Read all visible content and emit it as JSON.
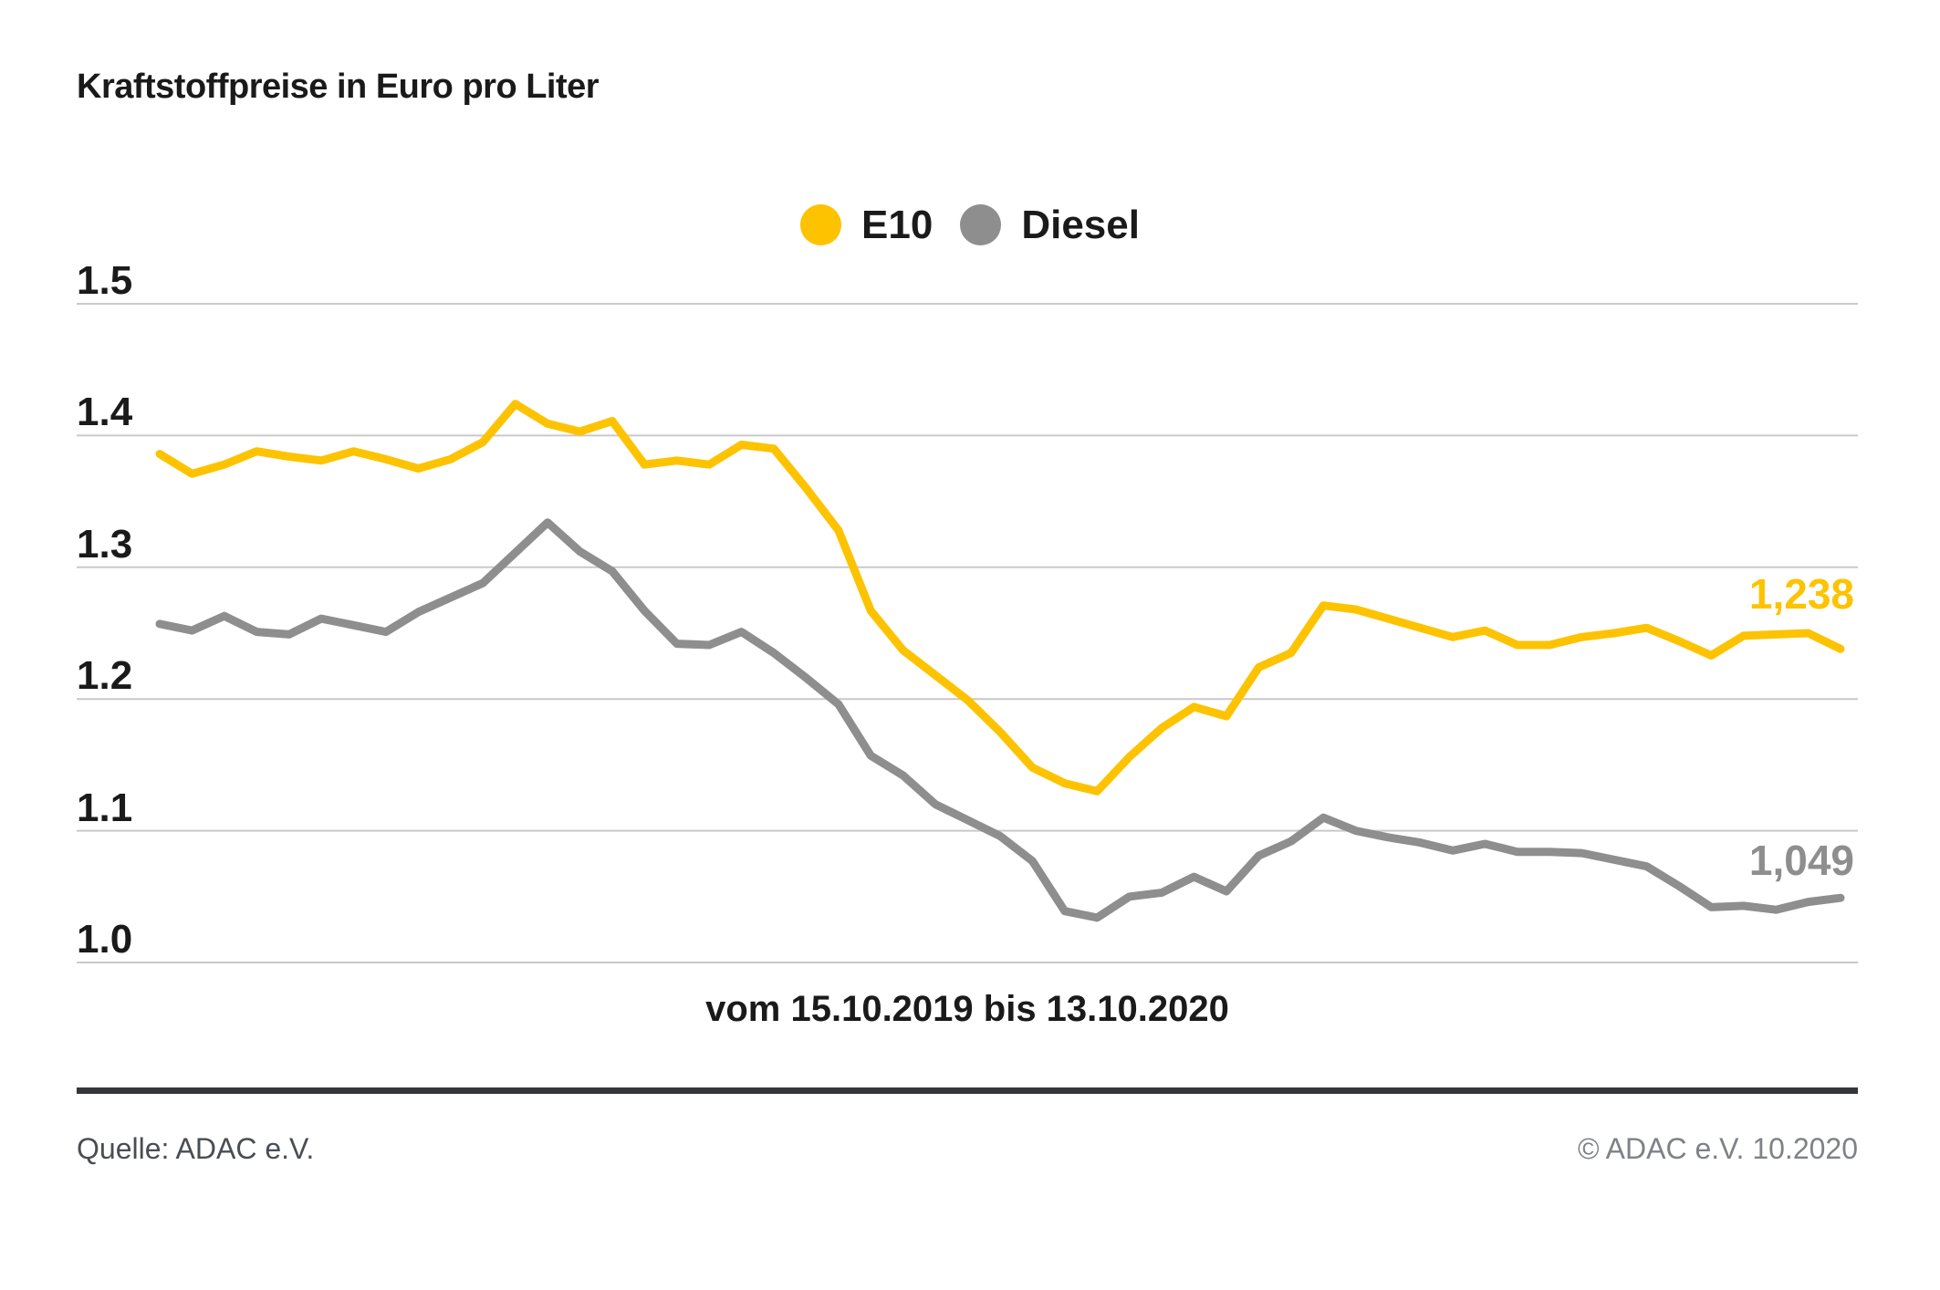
{
  "title": "Kraftstoffpreise in Euro pro Liter",
  "legend": [
    {
      "label": "E10",
      "color": "#fdc300"
    },
    {
      "label": "Diesel",
      "color": "#8e8e8e"
    }
  ],
  "footer": {
    "source": "Quelle: ADAC e.V.",
    "copyright": "© ADAC e.V. 10.2020"
  },
  "colors": {
    "e10": "#fdc300",
    "diesel": "#8e8e8e",
    "gridline": "#c9c9c9",
    "text": "#1a1a1a",
    "divider": "#33373b"
  },
  "chart_data": {
    "type": "line",
    "title": "Kraftstoffpreise in Euro pro Liter",
    "xlabel": "vom 15.10.2019 bis 13.10.2020",
    "ylabel": "Euro pro Liter",
    "x_range": [
      "15.10.2019",
      "13.10.2020"
    ],
    "x_interval": "weekly",
    "ylim": [
      1.0,
      1.55
    ],
    "grid": true,
    "legend_position": "top-center",
    "y_ticks": [
      {
        "label": "1.5",
        "value": 1.5
      },
      {
        "label": "1.4",
        "value": 1.4
      },
      {
        "label": "1.3",
        "value": 1.3
      },
      {
        "label": "1.2",
        "value": 1.2
      },
      {
        "label": "1.1",
        "value": 1.1
      },
      {
        "label": "1.0",
        "value": 1.0
      }
    ],
    "series": [
      {
        "name": "E10",
        "color": "#fdc300",
        "end_label": "1,238",
        "end_value": 1.238,
        "values": [
          1.386,
          1.371,
          1.378,
          1.388,
          1.384,
          1.381,
          1.388,
          1.382,
          1.375,
          1.382,
          1.395,
          1.424,
          1.409,
          1.403,
          1.411,
          1.378,
          1.381,
          1.378,
          1.393,
          1.39,
          1.36,
          1.328,
          1.267,
          1.237,
          1.218,
          1.199,
          1.175,
          1.148,
          1.136,
          1.13,
          1.156,
          1.178,
          1.194,
          1.187,
          1.224,
          1.235,
          1.271,
          1.268,
          1.261,
          1.254,
          1.247,
          1.252,
          1.241,
          1.241,
          1.247,
          1.25,
          1.254,
          1.244,
          1.233,
          1.248,
          1.249,
          1.25,
          1.238
        ]
      },
      {
        "name": "Diesel",
        "color": "#8e8e8e",
        "end_label": "1,049",
        "end_value": 1.049,
        "values": [
          1.257,
          1.252,
          1.263,
          1.251,
          1.249,
          1.261,
          1.256,
          1.251,
          1.266,
          1.277,
          1.288,
          1.311,
          1.334,
          1.312,
          1.297,
          1.267,
          1.242,
          1.241,
          1.251,
          1.235,
          1.216,
          1.196,
          1.157,
          1.142,
          1.12,
          1.108,
          1.096,
          1.077,
          1.039,
          1.034,
          1.05,
          1.053,
          1.065,
          1.054,
          1.081,
          1.092,
          1.11,
          1.1,
          1.095,
          1.091,
          1.085,
          1.09,
          1.084,
          1.084,
          1.083,
          1.078,
          1.073,
          1.058,
          1.042,
          1.043,
          1.04,
          1.046,
          1.049
        ]
      }
    ]
  }
}
